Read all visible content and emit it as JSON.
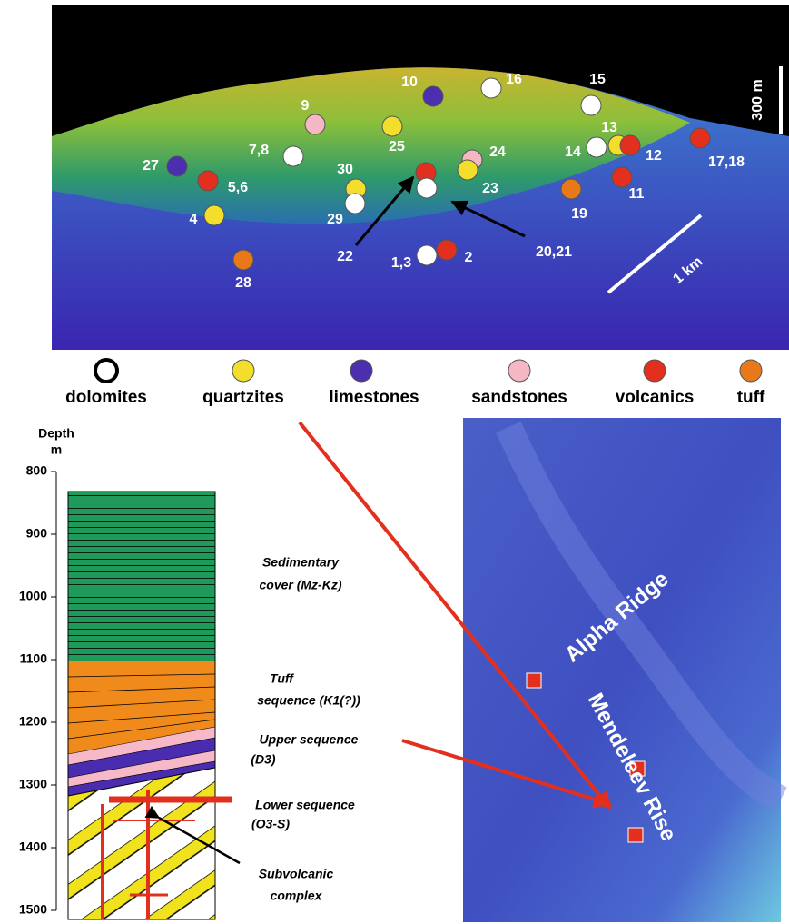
{
  "bathymetry": {
    "sample_labels": [
      "10",
      "16",
      "15",
      "9",
      "13",
      "12",
      "14",
      "7,8",
      "25",
      "24",
      "23",
      "17,18",
      "27",
      "5,6",
      "30",
      "29",
      "11",
      "19",
      "4",
      "1,3",
      "2",
      "28",
      "22",
      "20,21"
    ],
    "vertical_scale": "300 m",
    "horizontal_scale": "1 km"
  },
  "legend": [
    "dolomites",
    "quartzites",
    "limestones",
    "sandstones",
    "volcanics",
    "tuff"
  ],
  "column": {
    "axis_title": [
      "Depth",
      "m"
    ],
    "ylim": [
      800,
      1500
    ],
    "yticks": [
      800,
      900,
      1000,
      1100,
      1200,
      1300,
      1400,
      1500
    ],
    "units": [
      [
        "Sedimentary",
        "cover (Mz-Kz)"
      ],
      [
        "Tuff",
        "sequence (K1(?))"
      ],
      [
        "Upper sequence",
        "(D3)"
      ],
      [
        "Lower sequence",
        "(O3-S)"
      ],
      [
        "Subvolcanic",
        "complex"
      ]
    ]
  },
  "map": {
    "labels": [
      "Alpha Ridge",
      "Mendeleev Rise"
    ]
  }
}
